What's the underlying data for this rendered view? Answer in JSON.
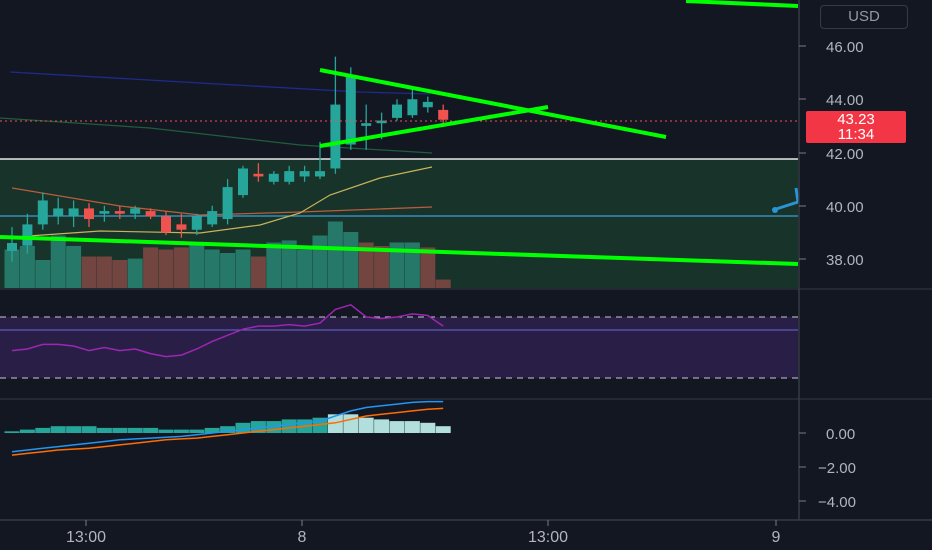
{
  "currency_button": "USD",
  "price_axis": {
    "main_ticks": [
      "46.00",
      "44.00",
      "42.00",
      "40.00",
      "38.00"
    ],
    "macd_ticks": [
      "0.00",
      "−2.00",
      "−4.00"
    ]
  },
  "last_price": {
    "value": "43.23",
    "countdown": "11:34"
  },
  "time_axis": {
    "labels": [
      "13:00",
      "8",
      "13:00",
      "9"
    ]
  },
  "colors": {
    "background": "#131722",
    "up": "#26a69a",
    "down": "#ef5350",
    "trendline": "#00ff00",
    "rsi": "#9c27b0",
    "price_tag": "#f23645"
  },
  "chart_data": {
    "type": "candlestick",
    "y_range": [
      36.6,
      47.2
    ],
    "candles": [
      {
        "o": 38.3,
        "h": 39.2,
        "l": 37.9,
        "c": 38.6
      },
      {
        "o": 38.5,
        "h": 39.7,
        "l": 38.2,
        "c": 39.3
      },
      {
        "o": 39.3,
        "h": 40.5,
        "l": 39.1,
        "c": 40.2
      },
      {
        "o": 39.6,
        "h": 40.3,
        "l": 39.3,
        "c": 39.9
      },
      {
        "o": 39.6,
        "h": 40.2,
        "l": 39.2,
        "c": 39.9
      },
      {
        "o": 39.9,
        "h": 40.1,
        "l": 39.2,
        "c": 39.5
      },
      {
        "o": 39.7,
        "h": 40.0,
        "l": 39.4,
        "c": 39.8
      },
      {
        "o": 39.8,
        "h": 40.0,
        "l": 39.5,
        "c": 39.7
      },
      {
        "o": 39.7,
        "h": 40.0,
        "l": 39.5,
        "c": 39.9
      },
      {
        "o": 39.8,
        "h": 39.9,
        "l": 39.5,
        "c": 39.6
      },
      {
        "o": 39.6,
        "h": 39.8,
        "l": 38.9,
        "c": 39.0
      },
      {
        "o": 39.3,
        "h": 39.7,
        "l": 38.8,
        "c": 39.1
      },
      {
        "o": 39.1,
        "h": 39.7,
        "l": 38.9,
        "c": 39.6
      },
      {
        "o": 39.3,
        "h": 40.0,
        "l": 39.2,
        "c": 39.8
      },
      {
        "o": 39.5,
        "h": 41.0,
        "l": 39.3,
        "c": 40.7
      },
      {
        "o": 40.4,
        "h": 41.5,
        "l": 40.3,
        "c": 41.4
      },
      {
        "o": 41.2,
        "h": 41.6,
        "l": 40.9,
        "c": 41.1
      },
      {
        "o": 40.9,
        "h": 41.3,
        "l": 40.8,
        "c": 41.2
      },
      {
        "o": 40.9,
        "h": 41.5,
        "l": 40.8,
        "c": 41.3
      },
      {
        "o": 41.1,
        "h": 41.5,
        "l": 40.9,
        "c": 41.3
      },
      {
        "o": 41.1,
        "h": 42.4,
        "l": 41.0,
        "c": 41.3
      },
      {
        "o": 41.4,
        "h": 45.6,
        "l": 41.2,
        "c": 43.8
      },
      {
        "o": 42.3,
        "h": 45.2,
        "l": 42.1,
        "c": 44.9
      },
      {
        "o": 43.0,
        "h": 43.8,
        "l": 42.1,
        "c": 43.1
      },
      {
        "o": 43.1,
        "h": 43.5,
        "l": 42.5,
        "c": 43.2
      },
      {
        "o": 43.3,
        "h": 44.0,
        "l": 43.2,
        "c": 43.8
      },
      {
        "o": 43.4,
        "h": 44.5,
        "l": 43.3,
        "c": 44.0
      },
      {
        "o": 43.7,
        "h": 44.1,
        "l": 43.5,
        "c": 43.9
      },
      {
        "o": 43.6,
        "h": 43.8,
        "l": 43.1,
        "c": 43.23
      }
    ],
    "volume": [
      0.55,
      0.6,
      0.4,
      0.75,
      0.6,
      0.45,
      0.45,
      0.4,
      0.42,
      0.58,
      0.55,
      0.58,
      0.65,
      0.55,
      0.5,
      0.55,
      0.45,
      0.65,
      0.68,
      0.55,
      0.75,
      0.95,
      0.8,
      0.65,
      0.6,
      0.65,
      0.65,
      0.58,
      0.12
    ],
    "volume_up": [
      true,
      true,
      true,
      true,
      true,
      false,
      false,
      false,
      true,
      false,
      false,
      false,
      true,
      true,
      true,
      true,
      false,
      true,
      true,
      true,
      true,
      true,
      true,
      false,
      false,
      true,
      true,
      false,
      false
    ],
    "rsi": [
      48,
      49,
      52,
      52,
      51,
      48,
      50,
      48,
      49,
      46,
      44,
      45,
      49,
      54,
      58,
      62,
      64,
      64,
      65,
      64,
      66,
      75,
      78,
      70,
      69,
      70,
      72,
      71,
      64
    ],
    "macd_hist": [
      0.1,
      0.2,
      0.3,
      0.4,
      0.4,
      0.4,
      0.3,
      0.3,
      0.3,
      0.3,
      0.2,
      0.2,
      0.2,
      0.3,
      0.4,
      0.6,
      0.7,
      0.7,
      0.8,
      0.8,
      0.9,
      1.1,
      1.1,
      0.9,
      0.8,
      0.7,
      0.7,
      0.6,
      0.4
    ],
    "macd_line": [
      -1.1,
      -1.0,
      -0.9,
      -0.8,
      -0.7,
      -0.6,
      -0.5,
      -0.4,
      -0.35,
      -0.3,
      -0.25,
      -0.2,
      -0.1,
      0.0,
      0.1,
      0.2,
      0.3,
      0.4,
      0.5,
      0.6,
      0.7,
      1.0,
      1.3,
      1.5,
      1.6,
      1.7,
      1.8,
      1.85,
      1.85
    ],
    "signal_line": [
      -1.3,
      -1.2,
      -1.1,
      -1.0,
      -0.95,
      -0.9,
      -0.8,
      -0.7,
      -0.6,
      -0.5,
      -0.4,
      -0.35,
      -0.3,
      -0.2,
      -0.1,
      0.0,
      0.1,
      0.2,
      0.3,
      0.4,
      0.5,
      0.6,
      0.8,
      1.0,
      1.1,
      1.2,
      1.3,
      1.4,
      1.45
    ],
    "macd_range": [
      -5.0,
      2.8
    ]
  }
}
